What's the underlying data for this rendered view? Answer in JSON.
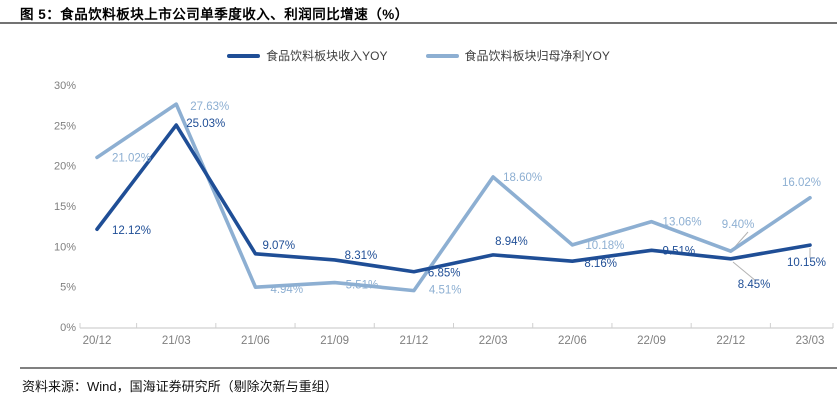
{
  "figure": {
    "title": "图 5：食品饮料板块上市公司单季度收入、利润同比增速（%）",
    "source": "资料来源：Wind，国海证券研究所（剔除次新与重组）"
  },
  "chart_data": {
    "type": "line",
    "title": "食品饮料板块上市公司单季度收入、利润同比增速（%）",
    "categories": [
      "20/12",
      "21/03",
      "21/06",
      "21/09",
      "21/12",
      "22/03",
      "22/06",
      "22/09",
      "22/12",
      "23/03"
    ],
    "series": [
      {
        "name": "食品饮料板块收入YOY",
        "color": "#1F4E96",
        "values": [
          12.12,
          25.03,
          9.07,
          8.31,
          6.85,
          8.94,
          8.16,
          9.51,
          8.45,
          10.15
        ]
      },
      {
        "name": "食品饮料板块归母净利YOY",
        "color": "#8DAFD2",
        "values": [
          21.02,
          27.63,
          4.94,
          5.51,
          4.51,
          18.6,
          10.18,
          13.06,
          9.4,
          16.02
        ]
      }
    ],
    "y_tick_labels": [
      "0%",
      "5%",
      "10%",
      "15%",
      "20%",
      "25%",
      "30%"
    ],
    "ylim": [
      0,
      30
    ],
    "grid": false,
    "legend_position": "top-center",
    "axis_color": "#d0d0d0",
    "tick_label_color": "#7f7f7f",
    "leader_line_color": "#b3b3b3",
    "label_suffix": "%"
  }
}
